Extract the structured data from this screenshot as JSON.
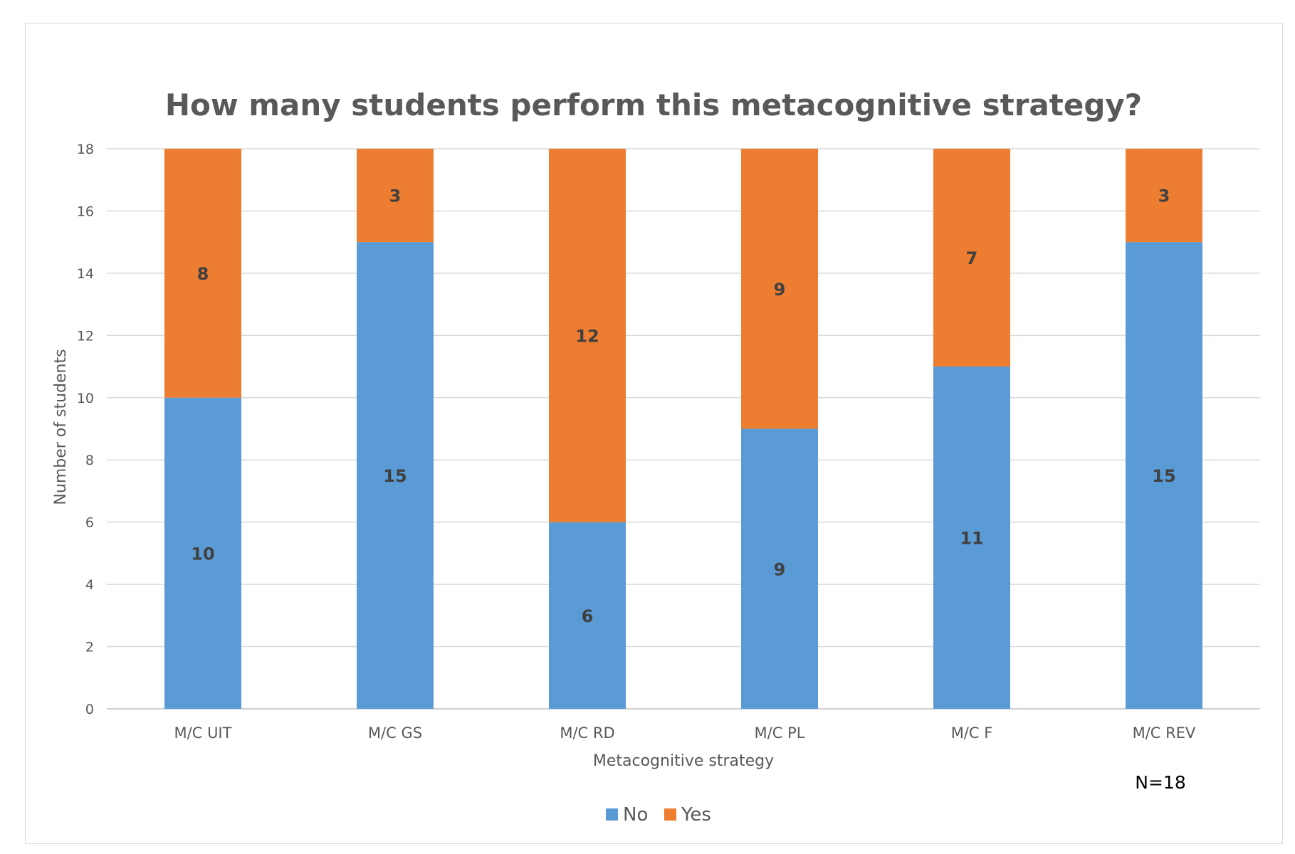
{
  "chart_data": {
    "type": "bar",
    "stacked": true,
    "title": "How many students perform this metacognitive strategy?",
    "xlabel": "Metacognitive strategy",
    "ylabel": "Number  of students",
    "ylim": [
      0,
      18
    ],
    "yticks": [
      0,
      2,
      4,
      6,
      8,
      10,
      12,
      14,
      16,
      18
    ],
    "categories": [
      "M/C UIT",
      "M/C GS",
      "M/C RD",
      "M/C PL",
      "M/C F",
      "M/C REV"
    ],
    "series": [
      {
        "name": "No",
        "color": "#5b9bd5",
        "values": [
          10,
          15,
          6,
          9,
          11,
          15
        ]
      },
      {
        "name": "Yes",
        "color": "#ed7d31",
        "values": [
          8,
          3,
          12,
          9,
          7,
          3
        ]
      }
    ],
    "legend_position": "bottom",
    "grid": true,
    "annotation": "N=18"
  }
}
